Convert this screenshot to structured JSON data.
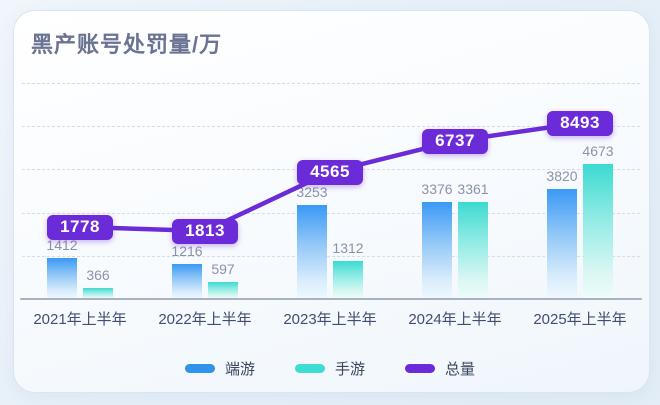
{
  "card": {
    "title": "黑产账号处罚量/万"
  },
  "chart_data": {
    "type": "bar",
    "title": "黑产账号处罚量/万",
    "unit": "万",
    "categories": [
      "2021年上半年",
      "2022年上半年",
      "2023年上半年",
      "2024年上半年",
      "2025年上半年"
    ],
    "series": [
      {
        "name": "端游",
        "type": "bar",
        "color": "#2F93EC",
        "values": [
          1412,
          1216,
          3253,
          3376,
          3820
        ]
      },
      {
        "name": "手游",
        "type": "bar",
        "color": "#3EDCD2",
        "values": [
          366,
          597,
          1312,
          3361,
          4673
        ]
      },
      {
        "name": "总量",
        "type": "line",
        "color": "#6B2BD9",
        "values": [
          1778,
          1813,
          4565,
          6737,
          8493
        ]
      }
    ],
    "ylim": [
      0,
      7500
    ],
    "gridline_values": [
      1500,
      3000,
      4500,
      6000,
      7500
    ],
    "grid": true,
    "legend_position": "bottom"
  }
}
